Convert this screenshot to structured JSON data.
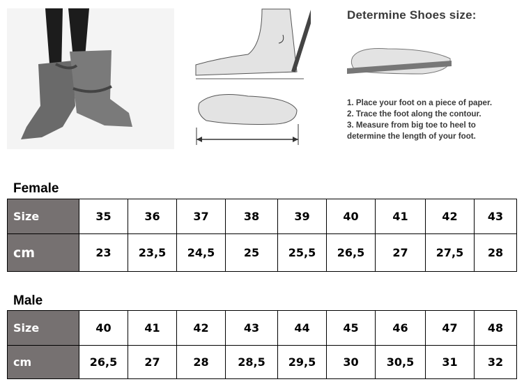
{
  "instructions": {
    "title": "Determine Shoes size:",
    "steps": [
      "1. Place your foot on a piece of paper.",
      "2. Trace the foot along the contour.",
      "3. Measure from big toe to heel to",
      "determine the length of your foot."
    ]
  },
  "female": {
    "title": "Female",
    "size_label": "Size",
    "cm_label": "cm",
    "sizes": [
      "35",
      "36",
      "37",
      "38",
      "39",
      "40",
      "41",
      "42",
      "43"
    ],
    "cm": [
      "23",
      "23,5",
      "24,5",
      "25",
      "25,5",
      "26,5",
      "27",
      "27,5",
      "28"
    ]
  },
  "male": {
    "title": "Male",
    "size_label": "Size",
    "cm_label": "cm",
    "sizes": [
      "40",
      "41",
      "42",
      "43",
      "44",
      "45",
      "46",
      "47",
      "48"
    ],
    "cm": [
      "26,5",
      "27",
      "28",
      "28,5",
      "29,5",
      "30",
      "30,5",
      "31",
      "32"
    ]
  },
  "colors": {
    "header_fill": "#767171",
    "header_text": "#ffffff"
  }
}
